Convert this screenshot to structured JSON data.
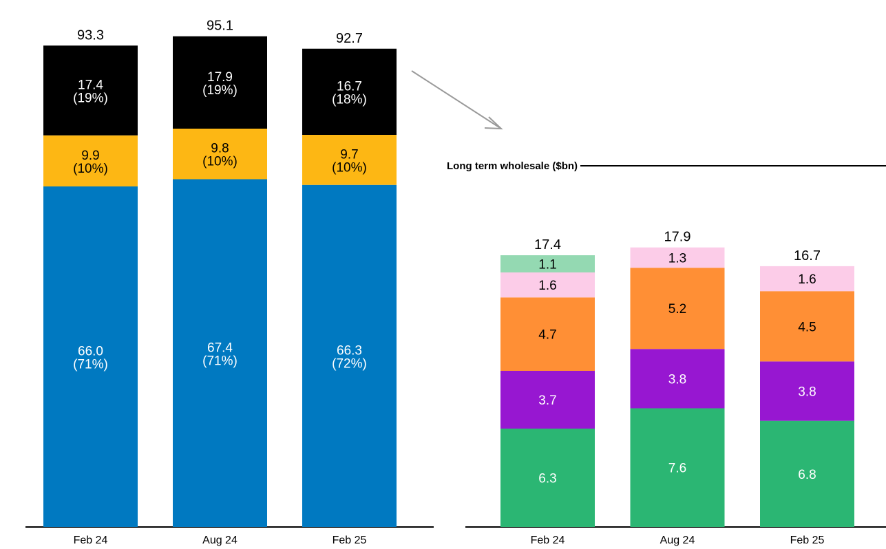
{
  "chart_data": [
    {
      "type": "bar",
      "stacked": true,
      "title": "",
      "categories": [
        "Feb 24",
        "Aug 24",
        "Feb 25"
      ],
      "totals": [
        "93.3",
        "95.1",
        "92.7"
      ],
      "series": [
        {
          "color": "#0079C1",
          "values": [
            66.0,
            67.4,
            66.3
          ],
          "labels": [
            "66.0",
            "67.4",
            "66.3"
          ],
          "pct": [
            "(71%)",
            "(71%)",
            "(72%)"
          ],
          "text_color": "#ffffff"
        },
        {
          "color": "#FDB714",
          "values": [
            9.9,
            9.8,
            9.7
          ],
          "labels": [
            "9.9",
            "9.8",
            "9.7"
          ],
          "pct": [
            "(10%)",
            "(10%)",
            "(10%)"
          ],
          "text_color": "#000000"
        },
        {
          "color": "#000000",
          "values": [
            17.4,
            17.9,
            16.7
          ],
          "labels": [
            "17.4",
            "17.9",
            "16.7"
          ],
          "pct": [
            "(19%)",
            "(19%)",
            "(18%)"
          ],
          "text_color": "#ffffff"
        }
      ],
      "ylim": [
        0,
        100
      ],
      "grid": false,
      "legend": "none"
    },
    {
      "type": "bar",
      "stacked": true,
      "title": "Long term wholesale ($bn)",
      "categories": [
        "Feb 24",
        "Aug 24",
        "Feb 25"
      ],
      "totals": [
        "17.4",
        "17.9",
        "16.7"
      ],
      "series": [
        {
          "color": "#2BB673",
          "values": [
            6.3,
            7.6,
            6.8
          ],
          "labels": [
            "6.3",
            "7.6",
            "6.8"
          ],
          "text_color": "#ffffff"
        },
        {
          "color": "#9717D1",
          "values": [
            3.7,
            3.8,
            3.8
          ],
          "labels": [
            "3.7",
            "3.8",
            "3.8"
          ],
          "text_color": "#ffffff"
        },
        {
          "color": "#FF8F35",
          "values": [
            4.7,
            5.2,
            4.5
          ],
          "labels": [
            "4.7",
            "5.2",
            "4.5"
          ],
          "text_color": "#000000"
        },
        {
          "color": "#FCCCE8",
          "values": [
            1.6,
            1.3,
            1.6
          ],
          "labels": [
            "1.6",
            "1.3",
            "1.6"
          ],
          "text_color": "#000000"
        },
        {
          "color": "#94D9B2",
          "values": [
            1.1,
            0,
            0
          ],
          "labels": [
            "1.1",
            "",
            ""
          ],
          "text_color": "#000000"
        }
      ],
      "ylim": [
        0,
        20
      ],
      "grid": false,
      "legend": "none"
    }
  ]
}
